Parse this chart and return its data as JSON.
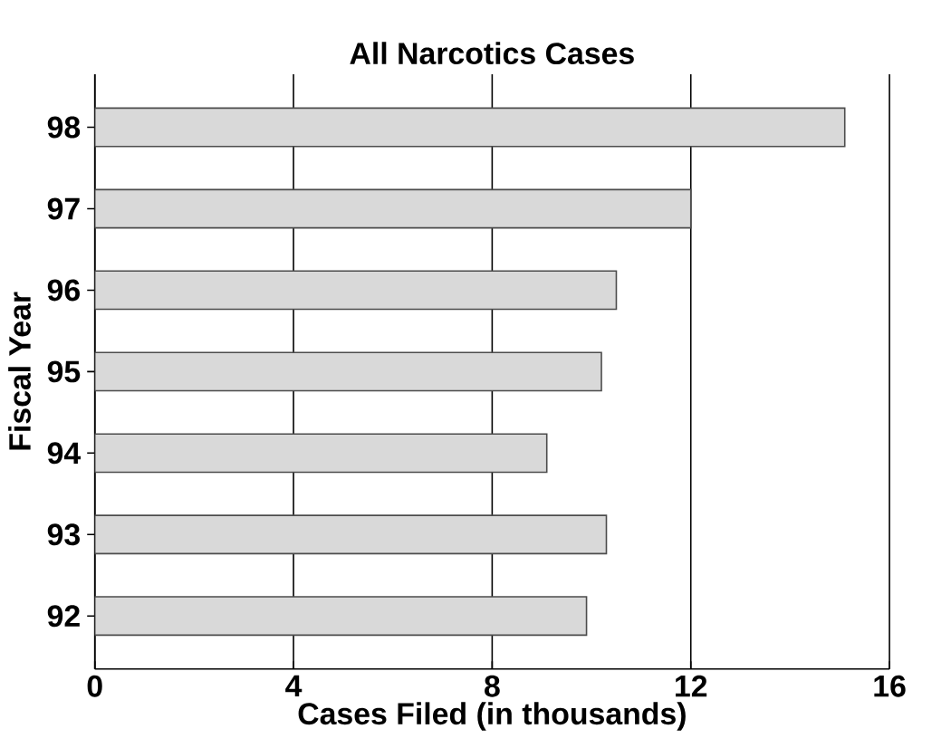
{
  "chart_data": {
    "type": "bar",
    "orientation": "horizontal",
    "title": "All Narcotics Cases",
    "xlabel": "Cases Filed (in thousands)",
    "ylabel": "Fiscal Year",
    "categories": [
      "98",
      "97",
      "96",
      "95",
      "94",
      "93",
      "92"
    ],
    "values": [
      15.1,
      12.0,
      10.5,
      10.2,
      9.1,
      10.3,
      9.9
    ],
    "color": "#d9d9d9",
    "xlim": [
      0,
      16
    ],
    "xticks": [
      0,
      4,
      8,
      12,
      16
    ],
    "grid": "x"
  }
}
